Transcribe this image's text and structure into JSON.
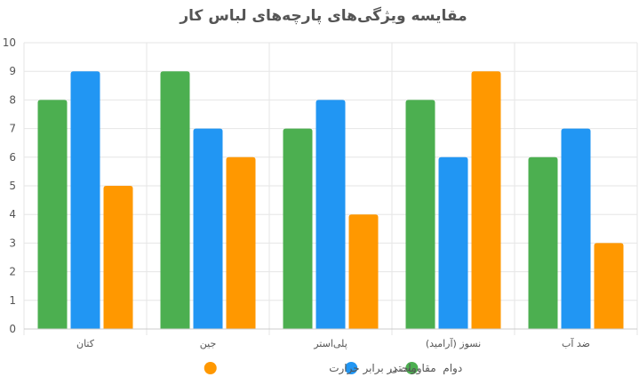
{
  "chart_data": {
    "type": "bar",
    "title": "مقایسه ویژگی‌های پارچه‌های لباس کار",
    "xlabel": "",
    "ylabel": "",
    "ylim": [
      0,
      10
    ],
    "yticks": [
      0,
      1,
      2,
      3,
      4,
      5,
      6,
      7,
      8,
      9,
      10
    ],
    "categories": [
      "کتان",
      "جین",
      "پلی‌استر",
      "نسوز (آرامید)",
      "ضد آب"
    ],
    "series": [
      {
        "name": "دوام",
        "color": "#4caf50",
        "values": [
          8,
          9,
          7,
          8,
          6
        ]
      },
      {
        "name": "راحتی",
        "color": "#2196f3",
        "values": [
          9,
          7,
          8,
          6,
          7
        ]
      },
      {
        "name": "مقاومت در برابر حرارت",
        "color": "#ff9800",
        "values": [
          5,
          6,
          4,
          9,
          3
        ]
      }
    ],
    "grid": true,
    "legend_position": "bottom"
  }
}
